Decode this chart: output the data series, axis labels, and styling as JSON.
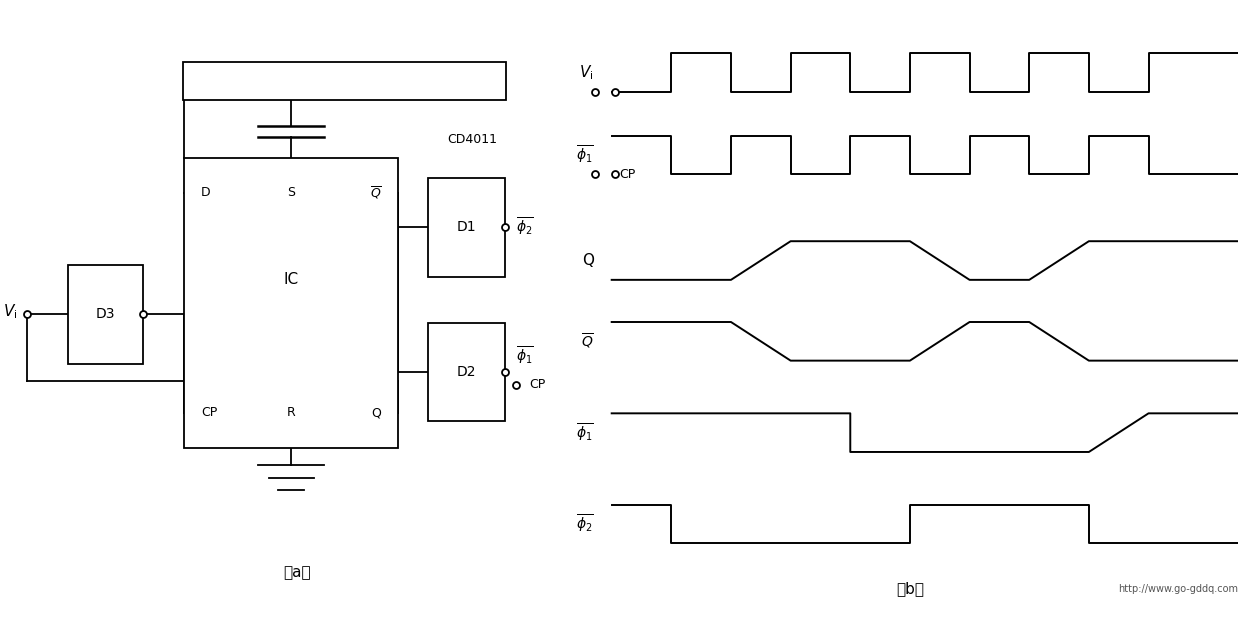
{
  "fig_width": 12.38,
  "fig_height": 6.44,
  "bg_color": "#ffffff",
  "line_color": "#000000",
  "waveforms": {
    "t": [
      0,
      1,
      1,
      2,
      2,
      3,
      3,
      4,
      4,
      5,
      5,
      6,
      6,
      7,
      7,
      8,
      8,
      9,
      9,
      10
    ],
    "Vi": [
      0,
      0,
      1,
      1,
      0,
      0,
      1,
      1,
      0,
      0,
      1,
      1,
      0,
      0,
      1,
      1,
      0,
      0,
      1,
      1
    ],
    "Vi_inv": [
      1,
      1,
      0,
      0,
      1,
      1,
      0,
      0,
      1,
      1,
      0,
      0,
      1,
      1,
      0,
      0,
      1,
      1,
      0,
      0
    ],
    "Q": [
      0,
      0,
      0,
      0,
      0,
      1,
      1,
      1,
      1,
      1,
      1,
      0,
      0,
      0,
      0,
      1,
      1,
      1,
      1,
      1
    ],
    "Qbar": [
      1,
      1,
      1,
      1,
      1,
      0,
      0,
      0,
      0,
      0,
      0,
      1,
      1,
      1,
      1,
      0,
      0,
      0,
      0,
      0
    ],
    "phi1bar": [
      1,
      1,
      1,
      1,
      1,
      1,
      1,
      1,
      0,
      0,
      0,
      0,
      0,
      0,
      0,
      0,
      0,
      1,
      1,
      1
    ],
    "phi2bar": [
      1,
      1,
      0,
      0,
      0,
      0,
      0,
      0,
      0,
      0,
      1,
      1,
      1,
      1,
      1,
      1,
      0,
      0,
      0,
      0
    ]
  }
}
